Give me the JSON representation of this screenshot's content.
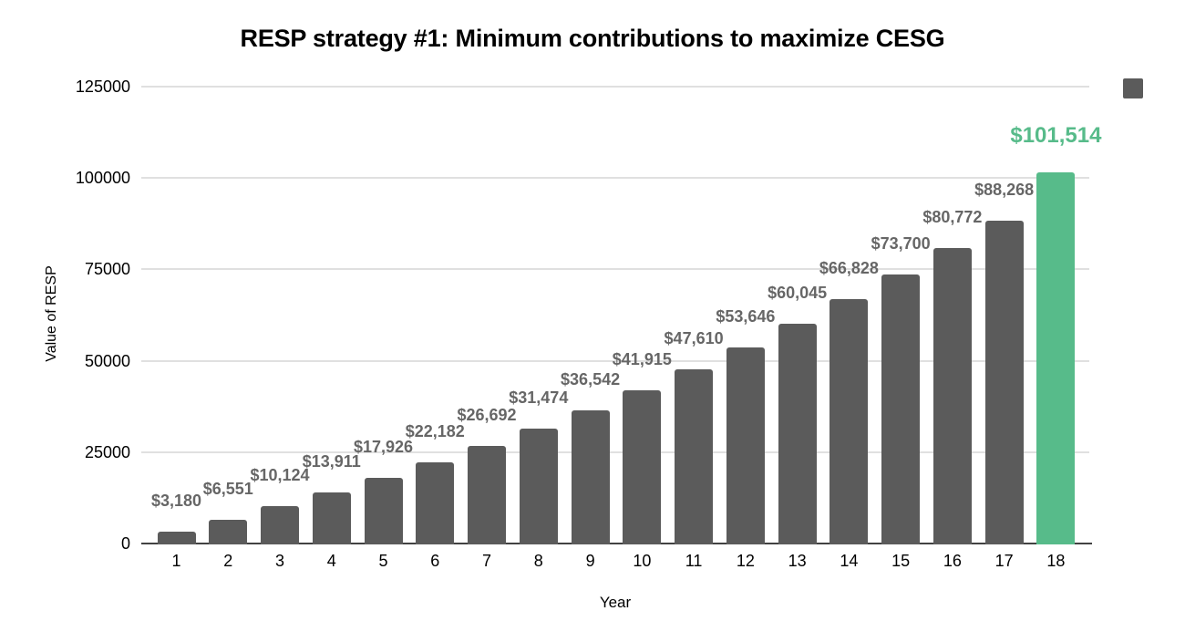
{
  "chart_data": {
    "type": "bar",
    "title": "RESP strategy #1: Minimum contributions to maximize CESG",
    "xlabel": "Year",
    "ylabel": "Value of RESP",
    "categories": [
      "1",
      "2",
      "3",
      "4",
      "5",
      "6",
      "7",
      "8",
      "9",
      "10",
      "11",
      "12",
      "13",
      "14",
      "15",
      "16",
      "17",
      "18"
    ],
    "values": [
      3180,
      6551,
      10124,
      13911,
      17926,
      22182,
      26692,
      31474,
      36542,
      41915,
      47610,
      53646,
      60045,
      66828,
      73700,
      80772,
      88268,
      101514
    ],
    "data_labels": [
      "$3,180",
      "$6,551",
      "$10,124",
      "$13,911",
      "$17,926",
      "$22,182",
      "$26,692",
      "$31,474",
      "$36,542",
      "$41,915",
      "$47,610",
      "$53,646",
      "$60,045",
      "$66,828",
      "$73,700",
      "$80,772",
      "$88,268",
      "$101,514"
    ],
    "ylim": [
      0,
      125000
    ],
    "yticks": [
      0,
      25000,
      50000,
      75000,
      100000,
      125000
    ],
    "grid": true,
    "bar_color": "#5b5b5b",
    "highlight_color": "#57bb8a",
    "highlight_index": 17,
    "label_color": "#666666",
    "highlight_label_color": "#57bb8a",
    "gridline_color": "#e0e0e0",
    "axis_line_color": "#424242",
    "legend": {
      "position": "top-right",
      "swatch_color": "#5b5b5b"
    }
  }
}
